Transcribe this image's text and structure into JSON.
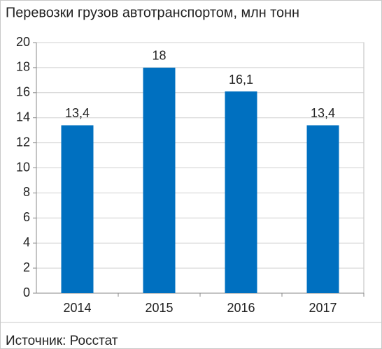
{
  "chart_data": {
    "type": "bar",
    "title": "Перевозки грузов автотранспортом, млн тонн",
    "categories": [
      "2014",
      "2015",
      "2016",
      "2017"
    ],
    "values": [
      13.4,
      18,
      16.1,
      13.4
    ],
    "value_labels": [
      "13,4",
      "18",
      "16,1",
      "13,4"
    ],
    "color": "#0070c0",
    "ylim": [
      0,
      20
    ],
    "yticks": [
      0,
      2,
      4,
      6,
      8,
      10,
      12,
      14,
      16,
      18,
      20
    ],
    "grid": true,
    "source": "Источник: Росстат"
  }
}
